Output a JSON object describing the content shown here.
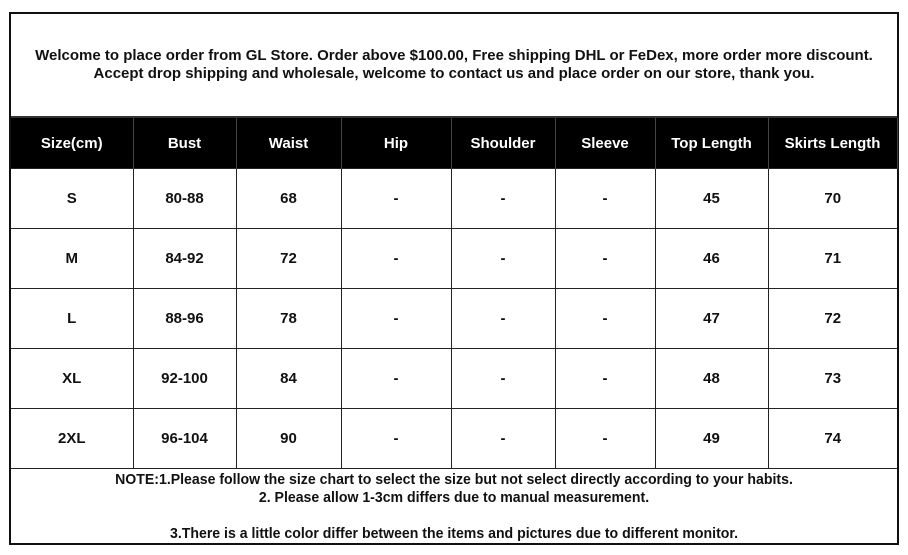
{
  "intro": "Welcome to place order from GL Store. Order above $100.00, Free shipping DHL or FeDex, more order more discount. Accept drop shipping and wholesale, welcome to contact us and place order on our store, thank you.",
  "table": {
    "headers": [
      "Size(cm)",
      "Bust",
      "Waist",
      "Hip",
      "Shoulder",
      "Sleeve",
      "Top  Length",
      "Skirts Length"
    ],
    "rows": [
      [
        "S",
        "80-88",
        "68",
        "-",
        "-",
        "-",
        "45",
        "70"
      ],
      [
        "M",
        "84-92",
        "72",
        "-",
        "-",
        "-",
        "46",
        "71"
      ],
      [
        "L",
        "88-96",
        "78",
        "-",
        "-",
        "-",
        "47",
        "72"
      ],
      [
        "XL",
        "92-100",
        "84",
        "-",
        "-",
        "-",
        "48",
        "73"
      ],
      [
        "2XL",
        "96-104",
        "90",
        "-",
        "-",
        "-",
        "49",
        "74"
      ]
    ]
  },
  "notes": {
    "line1": "NOTE:1.Please follow the size chart to select the size but not select directly according to your habits.",
    "line2": "2. Please allow 1-3cm differs due to manual measurement.",
    "line3": "3.There is a little color differ between the items and pictures due to different monitor."
  }
}
